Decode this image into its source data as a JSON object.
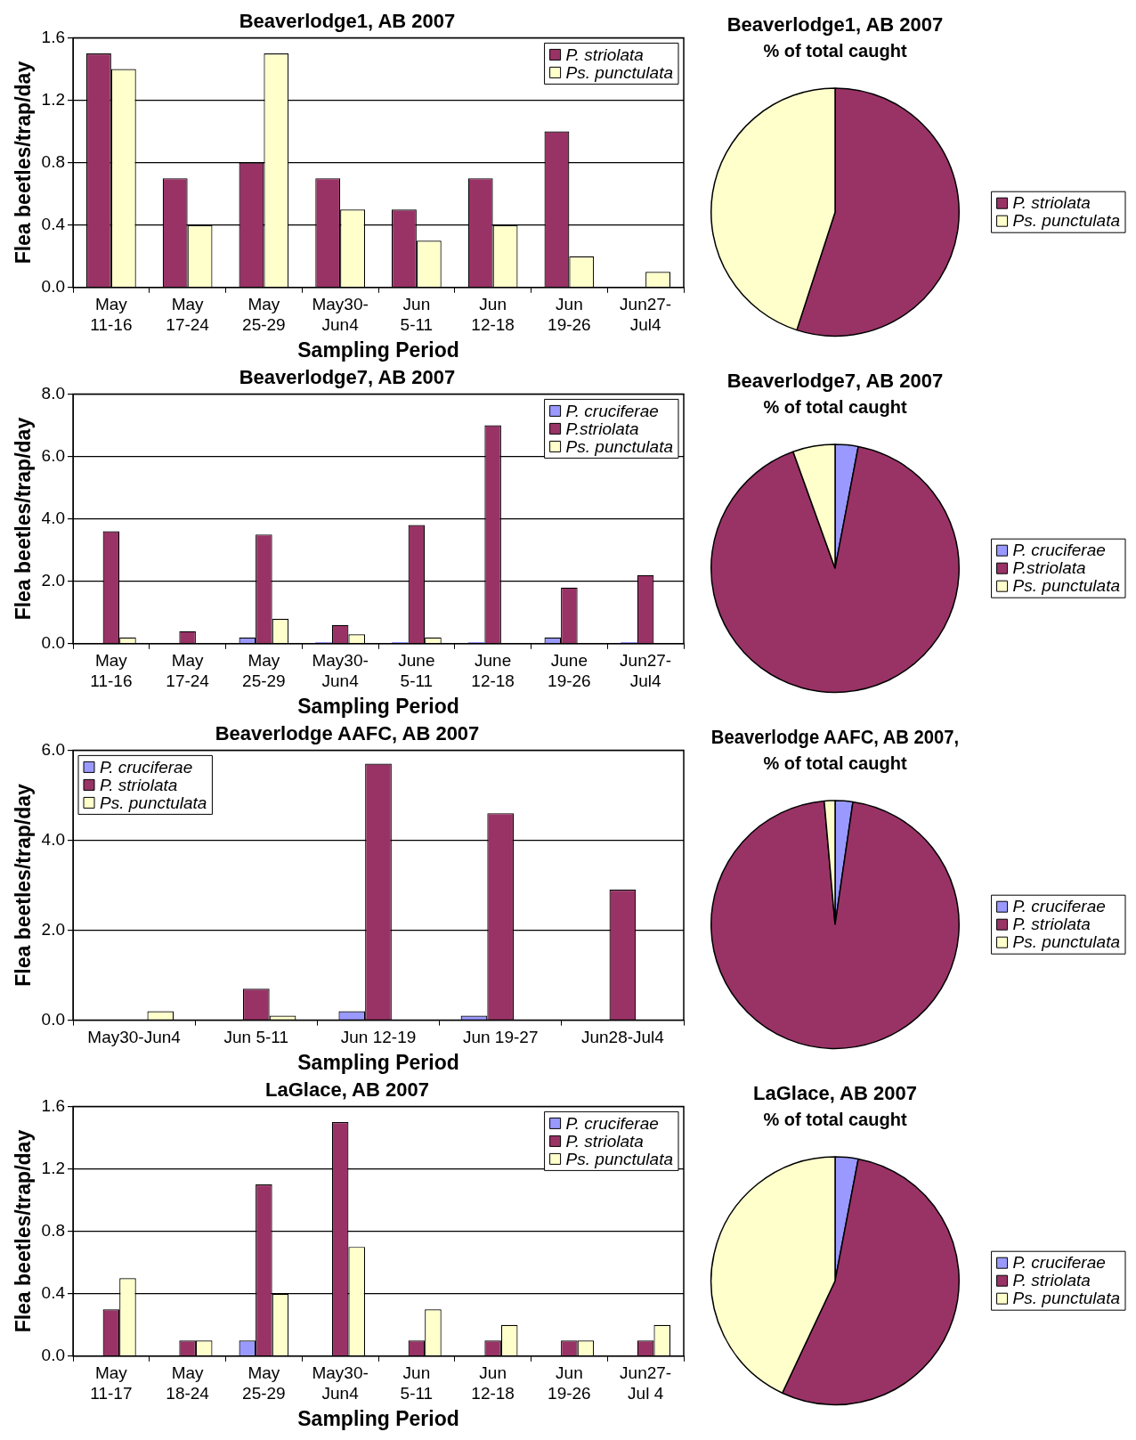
{
  "chart_data": [
    {
      "type": "bar",
      "title": "Beaverlodge1, AB 2007",
      "xlabel": "Sampling Period",
      "ylabel": "Flea beetles/trap/day",
      "categories": [
        "May\n11-16",
        "May\n17-24",
        "May\n25-29",
        "May30-\nJun4",
        "Jun\n5-11",
        "Jun\n12-18",
        "Jun\n19-26",
        "Jun27-\nJul4"
      ],
      "series": [
        {
          "name": "P. striolata",
          "color": "#993366",
          "values": [
            1.5,
            0.7,
            0.8,
            0.7,
            0.5,
            0.7,
            1.0,
            0
          ]
        },
        {
          "name": "Ps. punctulata",
          "color": "#ffffcc",
          "values": [
            1.4,
            0.4,
            1.5,
            0.5,
            0.3,
            0.4,
            0.2,
            0.1
          ]
        }
      ],
      "ylim": [
        0,
        1.6
      ],
      "yticks": [
        {
          "value": 0,
          "label": "0.0"
        },
        {
          "value": 0.4,
          "label": "0.4"
        },
        {
          "value": 0.8,
          "label": "0.8"
        },
        {
          "value": 1.2,
          "label": "1.2"
        },
        {
          "value": 1.6,
          "label": "1.6"
        }
      ],
      "grid": "y",
      "legend": "top right"
    },
    {
      "type": "pie",
      "title": "Beaverlodge1, AB 2007",
      "subtitle": "% of total caught",
      "categories": [
        "P. striolata",
        "Ps. punctulata"
      ],
      "values": [
        55,
        45
      ],
      "colors": [
        "#993366",
        "#ffffcc"
      ],
      "legend": "right"
    },
    {
      "type": "bar",
      "title": "Beaverlodge7, AB 2007",
      "xlabel": "Sampling Period",
      "ylabel": "Flea beetles/trap/day",
      "categories": [
        "May\n11-16",
        "May\n17-24",
        "May\n25-29",
        "May30-\nJun4",
        "June\n5-11",
        "June\n12-18",
        "June\n19-26",
        "Jun27-\nJul4"
      ],
      "series": [
        {
          "name": "P. cruciferae",
          "color": "#9999ff",
          "values": [
            0,
            0,
            0.2,
            0.05,
            0.05,
            0.05,
            0.2,
            0.05
          ]
        },
        {
          "name": "P.striolata",
          "color": "#993366",
          "values": [
            3.6,
            0.4,
            3.5,
            0.6,
            3.8,
            7.0,
            1.8,
            2.2
          ]
        },
        {
          "name": "Ps. punctulata",
          "color": "#ffffcc",
          "values": [
            0.2,
            0,
            0.8,
            0.3,
            0.2,
            0,
            0,
            null
          ]
        }
      ],
      "ylim": [
        0,
        8
      ],
      "yticks": [
        {
          "value": 0,
          "label": "0.0"
        },
        {
          "value": 2,
          "label": "2.0"
        },
        {
          "value": 4,
          "label": "4.0"
        },
        {
          "value": 6,
          "label": "6.0"
        },
        {
          "value": 8,
          "label": "8.0"
        }
      ],
      "grid": "y",
      "legend": "top right"
    },
    {
      "type": "pie",
      "title": "Beaverlodge7, AB 2007",
      "subtitle": "% of total caught",
      "categories": [
        "P. cruciferae",
        "P.striolata",
        "Ps. punctulata"
      ],
      "values": [
        3,
        91.5,
        5.5
      ],
      "colors": [
        "#9999ff",
        "#993366",
        "#ffffcc"
      ],
      "legend": "right"
    },
    {
      "type": "bar",
      "title": "Beaverlodge AAFC, AB 2007",
      "xlabel": "Sampling Period",
      "ylabel": "Flea beetles/trap/day",
      "categories": [
        "May30-Jun4",
        "Jun 5-11",
        "Jun 12-19",
        "Jun 19-27",
        "Jun28-Jul4"
      ],
      "series": [
        {
          "name": "P. cruciferae",
          "color": "#9999ff",
          "values": [
            0,
            0,
            0.2,
            0.1,
            0
          ]
        },
        {
          "name": "P. striolata",
          "color": "#993366",
          "values": [
            0,
            0.7,
            5.7,
            4.6,
            2.9
          ]
        },
        {
          "name": "Ps. punctulata",
          "color": "#ffffcc",
          "values": [
            0.2,
            0.1,
            0,
            0,
            0
          ]
        }
      ],
      "ylim": [
        0,
        6
      ],
      "yticks": [
        {
          "value": 0,
          "label": "0.0"
        },
        {
          "value": 2,
          "label": "2.0"
        },
        {
          "value": 4,
          "label": "4.0"
        },
        {
          "value": 6,
          "label": "6.0"
        }
      ],
      "grid": "y",
      "legend": "top left"
    },
    {
      "type": "pie",
      "title": "Beaverlodge AAFC, AB 2007,",
      "subtitle": "% of total caught",
      "categories": [
        "P. cruciferae",
        "P. striolata",
        "Ps. punctulata"
      ],
      "values": [
        2.3,
        96.3,
        1.4
      ],
      "colors": [
        "#9999ff",
        "#993366",
        "#ffffcc"
      ],
      "legend": "right"
    },
    {
      "type": "bar",
      "title": "LaGlace, AB 2007",
      "xlabel": "Sampling Period",
      "ylabel": "Flea beetles/trap/day",
      "categories": [
        "May\n11-17",
        "May\n18-24",
        "May\n25-29",
        "May30-\nJun4",
        "Jun\n5-11",
        "Jun\n12-18",
        "Jun\n19-26",
        "Jun27-\nJul 4"
      ],
      "series": [
        {
          "name": "P. cruciferae",
          "color": "#9999ff",
          "values": [
            0,
            0,
            0.1,
            0,
            0,
            0,
            0,
            0
          ]
        },
        {
          "name": "P. striolata",
          "color": "#993366",
          "values": [
            0.3,
            0.1,
            1.1,
            1.5,
            0.1,
            0.1,
            0.1,
            0.1
          ]
        },
        {
          "name": "Ps. punctulata",
          "color": "#ffffcc",
          "values": [
            0.5,
            0.1,
            0.4,
            0.7,
            0.3,
            0.2,
            0.1,
            0.2
          ]
        }
      ],
      "ylim": [
        0,
        1.6
      ],
      "yticks": [
        {
          "value": 0,
          "label": "0.0"
        },
        {
          "value": 0.4,
          "label": "0.4"
        },
        {
          "value": 0.8,
          "label": "0.8"
        },
        {
          "value": 1.2,
          "label": "1.2"
        },
        {
          "value": 1.6,
          "label": "1.6"
        }
      ],
      "grid": "y",
      "legend": "top right"
    },
    {
      "type": "pie",
      "title": "LaGlace, AB 2007",
      "subtitle": "% of total caught",
      "categories": [
        "P. cruciferae",
        "P. striolata",
        "Ps. punctulata"
      ],
      "values": [
        3,
        54,
        43
      ],
      "colors": [
        "#9999ff",
        "#993366",
        "#ffffcc"
      ],
      "legend": "right"
    }
  ]
}
